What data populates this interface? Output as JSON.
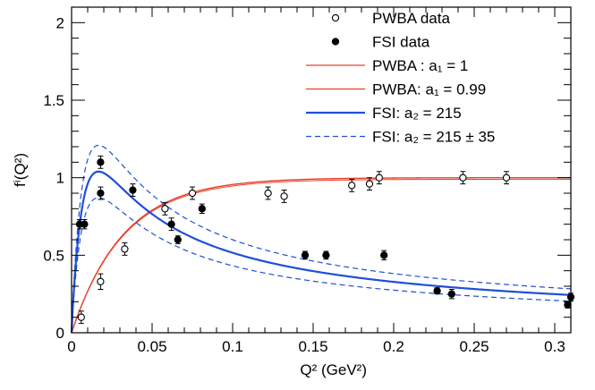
{
  "chart_data": {
    "type": "scatter",
    "xlabel": "Q² (GeV²)",
    "ylabel": "fⁱ(Q²)",
    "xlim": [
      0,
      0.31
    ],
    "ylim": [
      0,
      2.1
    ],
    "x_ticks": [
      0,
      0.05,
      0.1,
      0.15,
      0.2,
      0.25,
      0.3
    ],
    "x_tick_labels": [
      "0",
      "0.05",
      "0.1",
      "0.15",
      "0.2",
      "0.25",
      "0.3"
    ],
    "y_ticks": [
      0,
      0.5,
      1,
      1.5,
      2
    ],
    "y_tick_labels": [
      "0",
      "0.5",
      "1",
      "1.5",
      "2"
    ],
    "grid": false,
    "legend_position": "top-right",
    "legend": [
      {
        "label": "PWBA data",
        "style": "open-circle",
        "color": "#000000"
      },
      {
        "label": "FSI data",
        "style": "filled-circle",
        "color": "#000000"
      },
      {
        "label": "PWBA : a₁ = 1",
        "style": "solid-line",
        "color": "#e8402a"
      },
      {
        "label": "PWBA: a₁ = 0.99",
        "style": "solid-line",
        "color": "#e8402a"
      },
      {
        "label": "FSI: a₂ = 215",
        "style": "solid-thick-line",
        "color": "#1f4fd8"
      },
      {
        "label": "FSI: a₂ = 215 ± 35",
        "style": "dashed-line",
        "color": "#1f4fd8"
      }
    ],
    "series": [
      {
        "name": "PWBA data",
        "kind": "points",
        "marker": "open",
        "points": [
          [
            0.006,
            0.1,
            0.04
          ],
          [
            0.018,
            0.33,
            0.05
          ],
          [
            0.033,
            0.54,
            0.04
          ],
          [
            0.058,
            0.8,
            0.04
          ],
          [
            0.075,
            0.9,
            0.04
          ],
          [
            0.122,
            0.9,
            0.04
          ],
          [
            0.132,
            0.88,
            0.04
          ],
          [
            0.174,
            0.95,
            0.04
          ],
          [
            0.185,
            0.96,
            0.04
          ],
          [
            0.191,
            1.0,
            0.04
          ],
          [
            0.243,
            1.0,
            0.04
          ],
          [
            0.27,
            1.0,
            0.04
          ]
        ]
      },
      {
        "name": "FSI data",
        "kind": "points",
        "marker": "filled",
        "points": [
          [
            0.005,
            0.7,
            0.03
          ],
          [
            0.008,
            0.7,
            0.03
          ],
          [
            0.018,
            1.1,
            0.04
          ],
          [
            0.018,
            0.9,
            0.04
          ],
          [
            0.038,
            0.92,
            0.04
          ],
          [
            0.062,
            0.7,
            0.04
          ],
          [
            0.066,
            0.6,
            0.025
          ],
          [
            0.081,
            0.8,
            0.03
          ],
          [
            0.145,
            0.5,
            0.025
          ],
          [
            0.158,
            0.5,
            0.025
          ],
          [
            0.194,
            0.5,
            0.03
          ],
          [
            0.227,
            0.27,
            0.02
          ],
          [
            0.236,
            0.25,
            0.03
          ],
          [
            0.308,
            0.18,
            0.02
          ],
          [
            0.31,
            0.23,
            0.025
          ]
        ]
      },
      {
        "name": "PWBA : a₁ = 1",
        "kind": "curve",
        "style": "solid",
        "color": "#e8402a",
        "width": 1.4,
        "a": 1.0
      },
      {
        "name": "PWBA: a₁ = 0.99",
        "kind": "curve",
        "style": "solid",
        "color": "#e8402a",
        "width": 1.0,
        "a": 0.99
      },
      {
        "name": "FSI: a₂ = 215",
        "kind": "curve",
        "style": "solid",
        "color": "#1f4fd8",
        "width": 2.2,
        "a": 215
      },
      {
        "name": "FSI: a₂ = 215 ± 35",
        "kind": "curve",
        "style": "dashed",
        "color": "#1f4fd8",
        "width": 1.2,
        "a": 250
      },
      {
        "name": "FSI: a₂ = 215 ± 35",
        "kind": "curve",
        "style": "dashed",
        "color": "#1f4fd8",
        "width": 1.2,
        "a": 180
      }
    ]
  }
}
